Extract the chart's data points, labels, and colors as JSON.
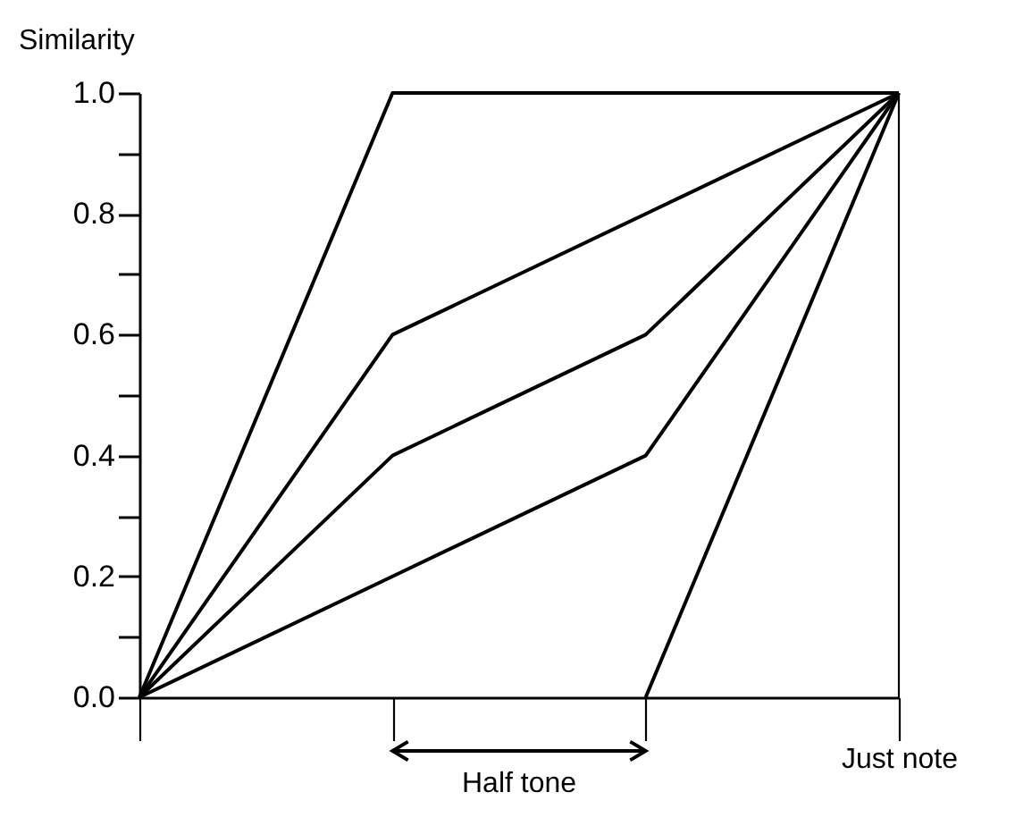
{
  "chart_data": {
    "type": "line",
    "ylabel": "Similarity",
    "categories": [
      null,
      null,
      null,
      "Just note"
    ],
    "ylim": [
      0,
      1
    ],
    "yticks": [
      {
        "value": 0,
        "label": "0.0"
      },
      {
        "value": 0.1,
        "label": null
      },
      {
        "value": 0.2,
        "label": "0.2"
      },
      {
        "value": 0.3,
        "label": null
      },
      {
        "value": 0.4,
        "label": "0.4"
      },
      {
        "value": 0.5,
        "label": null
      },
      {
        "value": 0.6,
        "label": "0.6"
      },
      {
        "value": 0.7,
        "label": null
      },
      {
        "value": 0.8,
        "label": "0.8"
      },
      {
        "value": 0.9,
        "label": null
      },
      {
        "value": 1,
        "label": "1.0"
      }
    ],
    "series": [
      {
        "color": "#000000",
        "values": [
          0,
          1,
          1,
          1
        ]
      },
      {
        "color": "#000000",
        "values": [
          0,
          0.6,
          0.8,
          1
        ]
      },
      {
        "color": "#000000",
        "values": [
          0,
          0.4,
          0.6,
          1
        ]
      },
      {
        "color": "#000000",
        "values": [
          0,
          0.2,
          0.4,
          1
        ]
      },
      {
        "color": "#000000",
        "values": [
          null,
          null,
          0,
          1
        ]
      }
    ],
    "ref_lines": [
      {
        "axis": "x",
        "value": "Just note",
        "color": "#000000"
      }
    ],
    "annotations": [
      "Half tone"
    ],
    "grid": false,
    "marker": "none",
    "line_style": "solid"
  }
}
